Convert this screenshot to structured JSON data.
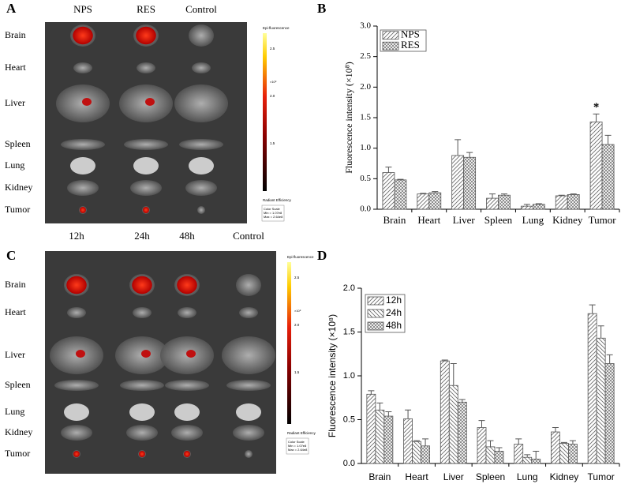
{
  "images": [
    {
      "label": "A",
      "columns": [
        "NPS",
        "RES",
        "Control"
      ],
      "rows": [
        "Brain",
        "Heart",
        "Liver",
        "Spleen",
        "Lung",
        "Kidney",
        "Tumor"
      ],
      "scale_title": "Epi-fluorescence",
      "scale_ticks": [
        "2.5",
        "2.0",
        "1.5"
      ],
      "scale_unit": "×10⁸",
      "scale_name": "Radiant Efficiency",
      "scale_box": [
        "Color Scale",
        "Min = 1.07e8",
        "Max = 2.64e8"
      ]
    },
    {
      "label": "C",
      "columns": [
        "12h",
        "24h",
        "48h",
        "Control"
      ],
      "rows": [
        "Brain",
        "Heart",
        "Liver",
        "Spleen",
        "Lung",
        "Kidney",
        "Tumor"
      ],
      "scale_title": "Epi-fluorescence",
      "scale_ticks": [
        "2.5",
        "2.0",
        "1.5"
      ],
      "scale_unit": "×10⁸",
      "scale_name": "Radiant Efficiency",
      "scale_box": [
        "Color Scale",
        "Min = 1.07e8",
        "Max = 2.64e8"
      ]
    }
  ],
  "chart_data": [
    {
      "type": "bar",
      "label": "B",
      "y_label": "Fluorescence intensity (×10⁸)",
      "categories": [
        "Brain",
        "Heart",
        "Liver",
        "Spleen",
        "Lung",
        "Kidney",
        "Tumor"
      ],
      "series": [
        {
          "name": "NPS",
          "color": "#555555",
          "hatch": "diagonal",
          "values": [
            0.6,
            0.25,
            0.88,
            0.18,
            0.05,
            0.22,
            1.43
          ],
          "errors": [
            0.09,
            0.01,
            0.26,
            0.07,
            0.03,
            0.01,
            0.13
          ]
        },
        {
          "name": "RES",
          "color": "#555555",
          "hatch": "crosshatch",
          "values": [
            0.48,
            0.27,
            0.85,
            0.23,
            0.08,
            0.24,
            1.06
          ],
          "errors": [
            0.01,
            0.02,
            0.08,
            0.02,
            0.01,
            0.01,
            0.15
          ]
        }
      ],
      "annotations": [
        {
          "text": "*",
          "series": 0,
          "category": 6
        }
      ],
      "ylim": [
        0,
        3.0
      ],
      "yticks": [
        {
          "value": 0,
          "label": "0.0"
        },
        0.5,
        {
          "value": 1.0,
          "label": "1.0"
        },
        1.5,
        {
          "value": 2.0,
          "label": "2.0"
        },
        2.5,
        {
          "value": 3.0,
          "label": "3.0"
        }
      ],
      "legend": "upper left",
      "font": "serif"
    },
    {
      "type": "bar",
      "label": "D",
      "y_label": "Fluorescence intensity (×10⁸)",
      "categories": [
        "Brain",
        "Heart",
        "Liver",
        "Spleen",
        "Lung",
        "Kidney",
        "Tumor"
      ],
      "series": [
        {
          "name": "12h",
          "color": "#555555",
          "hatch": "diagonal",
          "values": [
            0.79,
            0.51,
            1.17,
            0.41,
            0.22,
            0.36,
            1.71
          ],
          "errors": [
            0.04,
            0.1,
            0.01,
            0.08,
            0.06,
            0.05,
            0.1
          ]
        },
        {
          "name": "24h",
          "color": "#555555",
          "hatch": "back-diagonal",
          "values": [
            0.61,
            0.25,
            0.89,
            0.19,
            0.07,
            0.23,
            1.43
          ],
          "errors": [
            0.08,
            0.01,
            0.25,
            0.07,
            0.03,
            0.01,
            0.14
          ]
        },
        {
          "name": "48h",
          "color": "#555555",
          "hatch": "crosshatch",
          "values": [
            0.54,
            0.2,
            0.7,
            0.14,
            0.05,
            0.22,
            1.14
          ],
          "errors": [
            0.05,
            0.08,
            0.03,
            0.04,
            0.09,
            0.04,
            0.1
          ]
        }
      ],
      "annotations": [],
      "ylim": [
        0,
        2.0
      ],
      "yticks": [
        {
          "value": 0,
          "label": "0.0"
        },
        0.5,
        {
          "value": 1.0,
          "label": "1.0"
        },
        1.5,
        {
          "value": 2.0,
          "label": "2.0"
        }
      ],
      "legend": "upper left",
      "font": "sans"
    }
  ]
}
